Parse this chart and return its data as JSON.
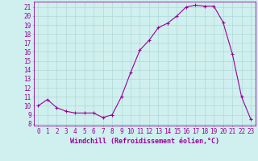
{
  "x": [
    0,
    1,
    2,
    3,
    4,
    5,
    6,
    7,
    8,
    9,
    10,
    11,
    12,
    13,
    14,
    15,
    16,
    17,
    18,
    19,
    20,
    21,
    22,
    23
  ],
  "y": [
    10.0,
    10.7,
    9.8,
    9.4,
    9.2,
    9.2,
    9.2,
    8.7,
    9.0,
    11.0,
    13.7,
    16.2,
    17.3,
    18.7,
    19.2,
    20.0,
    21.0,
    21.2,
    21.1,
    21.1,
    19.3,
    15.8,
    11.0,
    8.5
  ],
  "line_color": "#990099",
  "marker": "+",
  "xlabel": "Windchill (Refroidissement éolien,°C)",
  "xlabel_fontsize": 6.0,
  "ylabel_ticks": [
    8,
    9,
    10,
    11,
    12,
    13,
    14,
    15,
    16,
    17,
    18,
    19,
    20,
    21
  ],
  "xtick_labels": [
    "0",
    "1",
    "2",
    "3",
    "4",
    "5",
    "6",
    "7",
    "8",
    "9",
    "10",
    "11",
    "12",
    "13",
    "14",
    "15",
    "16",
    "17",
    "18",
    "19",
    "20",
    "21",
    "22",
    "23"
  ],
  "ylim": [
    7.8,
    21.6
  ],
  "xlim": [
    -0.5,
    23.5
  ],
  "bg_color": "#cff0ee",
  "grid_color": "#b0d8d8",
  "tick_fontsize": 5.5,
  "linewidth": 0.8,
  "markersize": 3.0
}
